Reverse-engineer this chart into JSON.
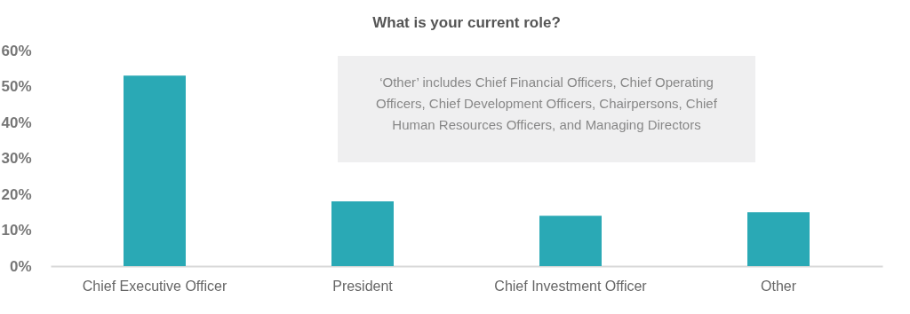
{
  "chart_data": {
    "type": "bar",
    "title": "What is your current role?",
    "categories": [
      "Chief Executive Officer",
      "President",
      "Chief Investment Officer",
      "Other"
    ],
    "values": [
      53,
      18,
      14,
      15
    ],
    "color": "#2aa9b5",
    "ylim": [
      0,
      60
    ],
    "yticks": [
      {
        "value": 0,
        "label": "0%"
      },
      {
        "value": 10,
        "label": "10%"
      },
      {
        "value": 20,
        "label": "20%"
      },
      {
        "value": 30,
        "label": "30%"
      },
      {
        "value": 40,
        "label": "40%"
      },
      {
        "value": 50,
        "label": "50%"
      },
      {
        "value": 60,
        "label": "60%"
      }
    ],
    "grid": false,
    "annotations": [
      "‘Other’ includes Chief Financial Officers, Chief Operating Officers, Chief Development Officers, Chairpersons, Chief Human Resources Officers, and Managing Directors"
    ]
  }
}
